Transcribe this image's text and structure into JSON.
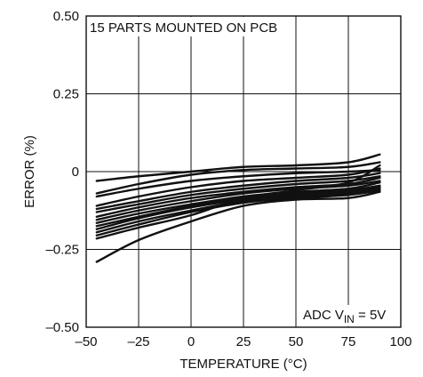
{
  "chart_data": {
    "type": "line",
    "title": "",
    "xlabel": "TEMPERATURE (°C)",
    "ylabel": "ERROR (%)",
    "xlim": [
      -50,
      100
    ],
    "ylim": [
      -0.5,
      0.5
    ],
    "x_ticks": [
      "–50",
      "–25",
      "0",
      "25",
      "50",
      "75",
      "100"
    ],
    "y_ticks": [
      "0.50",
      "0.25",
      "0",
      "–0.25",
      "–0.50"
    ],
    "grid": true,
    "legend": "none",
    "annotations": {
      "top_left": "15 PARTS MOUNTED ON PCB",
      "bottom_right": {
        "prefix": "ADC V",
        "subscript": "IN",
        "suffix": " = 5V"
      }
    },
    "x": [
      -45,
      -25,
      0,
      25,
      50,
      75,
      90
    ],
    "series": [
      {
        "values": [
          -0.03,
          -0.015,
          0.0,
          0.015,
          0.02,
          0.03,
          0.055
        ]
      },
      {
        "values": [
          -0.07,
          -0.04,
          -0.01,
          0.005,
          0.01,
          0.015,
          0.03
        ]
      },
      {
        "values": [
          -0.08,
          -0.055,
          -0.03,
          -0.015,
          -0.005,
          0.0,
          0.005
        ]
      },
      {
        "values": [
          -0.11,
          -0.08,
          -0.05,
          -0.03,
          -0.02,
          -0.01,
          0.01
        ]
      },
      {
        "values": [
          -0.12,
          -0.095,
          -0.065,
          -0.045,
          -0.03,
          -0.02,
          -0.005
        ]
      },
      {
        "values": [
          -0.13,
          -0.105,
          -0.075,
          -0.055,
          -0.04,
          -0.03,
          -0.015
        ]
      },
      {
        "values": [
          -0.145,
          -0.115,
          -0.085,
          -0.065,
          -0.05,
          -0.04,
          -0.02
        ]
      },
      {
        "values": [
          -0.155,
          -0.125,
          -0.095,
          -0.07,
          -0.055,
          -0.045,
          -0.03
        ]
      },
      {
        "values": [
          -0.165,
          -0.135,
          -0.105,
          -0.08,
          -0.065,
          -0.055,
          -0.035
        ]
      },
      {
        "values": [
          -0.175,
          -0.145,
          -0.11,
          -0.085,
          -0.07,
          -0.06,
          -0.045
        ]
      },
      {
        "values": [
          -0.185,
          -0.15,
          -0.115,
          -0.09,
          -0.075,
          -0.065,
          -0.05
        ]
      },
      {
        "values": [
          -0.195,
          -0.16,
          -0.125,
          -0.095,
          -0.08,
          -0.07,
          -0.055
        ]
      },
      {
        "values": [
          -0.205,
          -0.17,
          -0.13,
          -0.1,
          -0.085,
          -0.075,
          -0.06
        ]
      },
      {
        "values": [
          -0.215,
          -0.18,
          -0.14,
          -0.085,
          -0.06,
          -0.035,
          0.02
        ]
      },
      {
        "values": [
          -0.29,
          -0.22,
          -0.16,
          -0.11,
          -0.09,
          -0.085,
          -0.065
        ]
      }
    ]
  }
}
